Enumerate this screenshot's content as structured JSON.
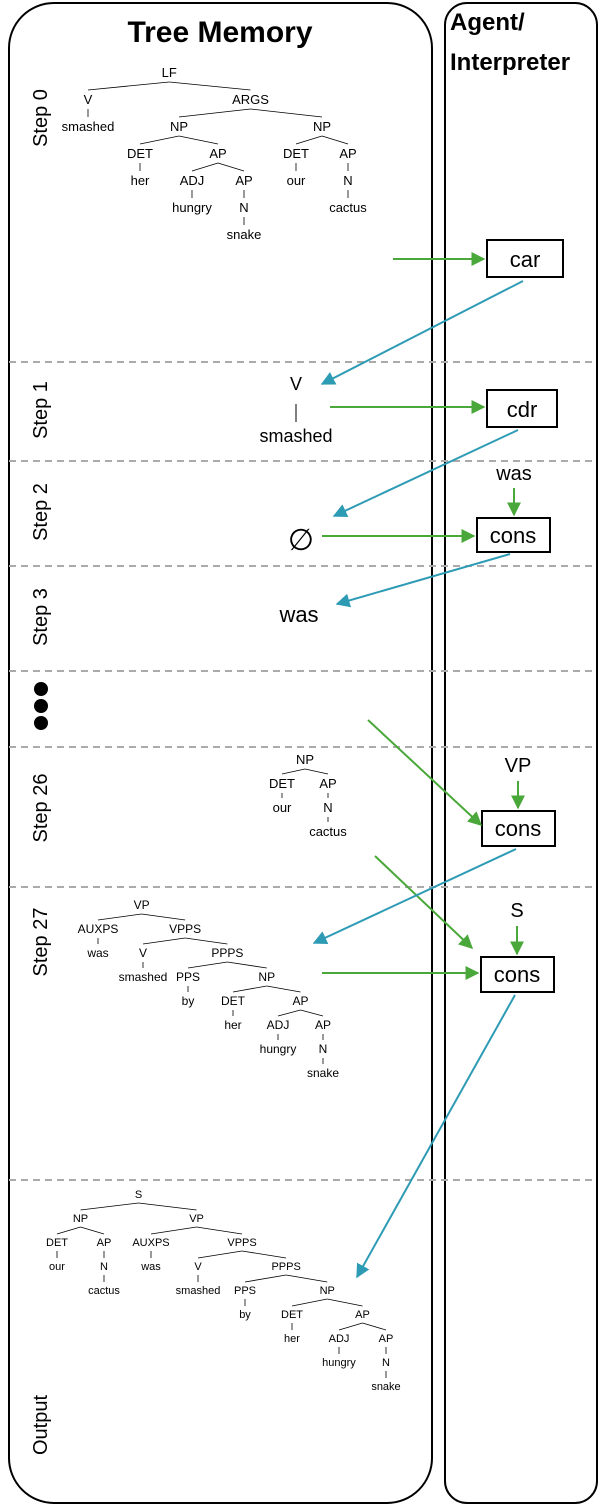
{
  "headers": {
    "memory": "Tree Memory",
    "agent_line1": "Agent/",
    "agent_line2": "Interpreter"
  },
  "steps": [
    "Step 0",
    "Step 1",
    "Step 2",
    "Step 3",
    "Step 26",
    "Step 27",
    "Output"
  ],
  "ops": {
    "car": "car",
    "cdr": "cdr",
    "cons_a": "cons",
    "cons_b": "cons",
    "cons_c": "cons"
  },
  "inputs": {
    "was": "was",
    "vp": "VP",
    "s": "S"
  },
  "step1_tree": {
    "v": "V",
    "smashed": "smashed"
  },
  "step2_empty": "∅",
  "step3_word": "was",
  "colors": {
    "green": "#4aa83a",
    "blue": "#2e9bb5",
    "dash": "#aaaaaa",
    "border": "#000000"
  },
  "trees": {
    "step0": {
      "label": "LF",
      "children": [
        {
          "label": "V",
          "children": [
            {
              "label": "smashed"
            }
          ]
        },
        {
          "label": "ARGS",
          "children": [
            {
              "label": "NP",
              "children": [
                {
                  "label": "DET",
                  "children": [
                    {
                      "label": "her"
                    }
                  ]
                },
                {
                  "label": "AP",
                  "children": [
                    {
                      "label": "ADJ",
                      "children": [
                        {
                          "label": "hungry"
                        }
                      ]
                    },
                    {
                      "label": "AP",
                      "children": [
                        {
                          "label": "N",
                          "children": [
                            {
                              "label": "snake"
                            }
                          ]
                        }
                      ]
                    }
                  ]
                }
              ]
            },
            {
              "label": "NP",
              "children": [
                {
                  "label": "DET",
                  "children": [
                    {
                      "label": "our"
                    }
                  ]
                },
                {
                  "label": "AP",
                  "children": [
                    {
                      "label": "N",
                      "children": [
                        {
                          "label": "cactus"
                        }
                      ]
                    }
                  ]
                }
              ]
            }
          ]
        }
      ]
    },
    "step26": {
      "label": "NP",
      "children": [
        {
          "label": "DET",
          "children": [
            {
              "label": "our"
            }
          ]
        },
        {
          "label": "AP",
          "children": [
            {
              "label": "N",
              "children": [
                {
                  "label": "cactus"
                }
              ]
            }
          ]
        }
      ]
    },
    "step27": {
      "label": "VP",
      "children": [
        {
          "label": "AUXPS",
          "children": [
            {
              "label": "was"
            }
          ]
        },
        {
          "label": "VPPS",
          "children": [
            {
              "label": "V",
              "children": [
                {
                  "label": "smashed"
                }
              ]
            },
            {
              "label": "PPPS",
              "children": [
                {
                  "label": "PPS",
                  "children": [
                    {
                      "label": "by"
                    }
                  ]
                },
                {
                  "label": "NP",
                  "children": [
                    {
                      "label": "DET",
                      "children": [
                        {
                          "label": "her"
                        }
                      ]
                    },
                    {
                      "label": "AP",
                      "children": [
                        {
                          "label": "ADJ",
                          "children": [
                            {
                              "label": "hungry"
                            }
                          ]
                        },
                        {
                          "label": "AP",
                          "children": [
                            {
                              "label": "N",
                              "children": [
                                {
                                  "label": "snake"
                                }
                              ]
                            }
                          ]
                        }
                      ]
                    }
                  ]
                }
              ]
            }
          ]
        }
      ]
    },
    "output": {
      "label": "S",
      "children": [
        {
          "label": "NP",
          "children": [
            {
              "label": "DET",
              "children": [
                {
                  "label": "our"
                }
              ]
            },
            {
              "label": "AP",
              "children": [
                {
                  "label": "N",
                  "children": [
                    {
                      "label": "cactus"
                    }
                  ]
                }
              ]
            }
          ]
        },
        {
          "label": "VP",
          "children": [
            {
              "label": "AUXPS",
              "children": [
                {
                  "label": "was"
                }
              ]
            },
            {
              "label": "VPPS",
              "children": [
                {
                  "label": "V",
                  "children": [
                    {
                      "label": "smashed"
                    }
                  ]
                },
                {
                  "label": "PPPS",
                  "children": [
                    {
                      "label": "PPS",
                      "children": [
                        {
                          "label": "by"
                        }
                      ]
                    },
                    {
                      "label": "NP",
                      "children": [
                        {
                          "label": "DET",
                          "children": [
                            {
                              "label": "her"
                            }
                          ]
                        },
                        {
                          "label": "AP",
                          "children": [
                            {
                              "label": "ADJ",
                              "children": [
                                {
                                  "label": "hungry"
                                }
                              ]
                            },
                            {
                              "label": "AP",
                              "children": [
                                {
                                  "label": "N",
                                  "children": [
                                    {
                                      "label": "snake"
                                    }
                                  ]
                                }
                              ]
                            }
                          ]
                        }
                      ]
                    }
                  ]
                }
              ]
            }
          ]
        }
      ]
    }
  }
}
